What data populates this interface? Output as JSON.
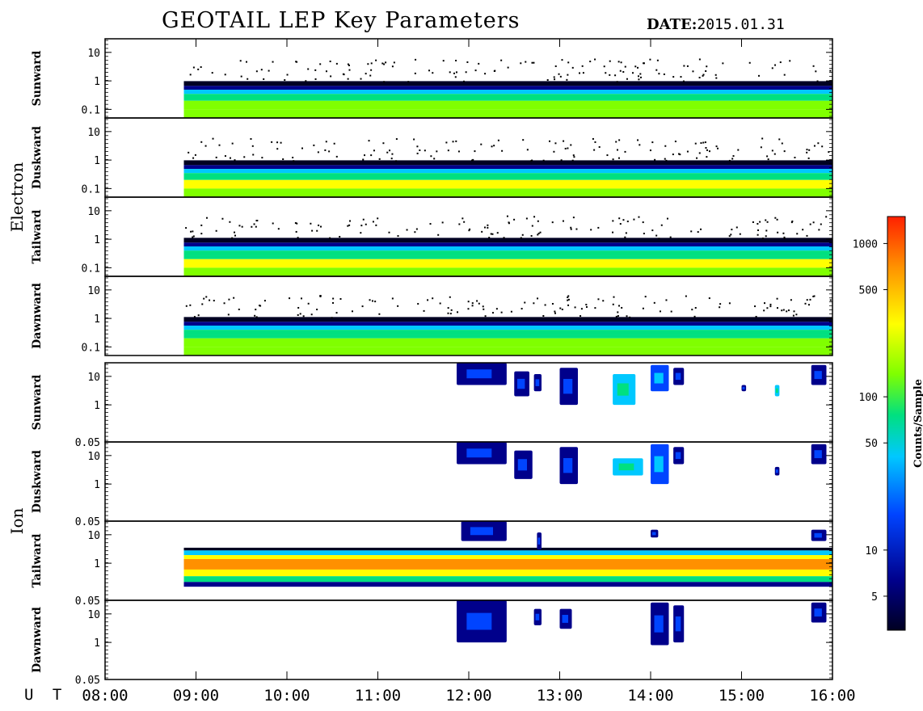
{
  "header": {
    "title": "GEOTAIL LEP Key Parameters",
    "date_label": "DATE:",
    "date_value": "2015.01.31"
  },
  "time_axis": {
    "label": "U T",
    "ticks": [
      "08:00",
      "09:00",
      "10:00",
      "11:00",
      "12:00",
      "13:00",
      "14:00",
      "15:00",
      "16:00"
    ]
  },
  "groups": [
    {
      "label": "Electron"
    },
    {
      "label": "Ion"
    }
  ],
  "colorbar": {
    "label": "Counts/Sample",
    "ticks": [
      "1000",
      "500",
      "100",
      "50",
      "10",
      "5"
    ],
    "colors": [
      "#000022",
      "#00008b",
      "#0044ff",
      "#00c8ff",
      "#00e080",
      "#80ff00",
      "#ffff00",
      "#ff9000",
      "#ff2000"
    ]
  },
  "chart_data": {
    "type": "heatmap",
    "title": "GEOTAIL LEP Key Parameters",
    "xlabel": "U T",
    "xlim": [
      "08:00",
      "16:00"
    ],
    "zlabel": "Counts/Sample",
    "zlim": [
      3,
      1500
    ],
    "zscale": "log",
    "panels": [
      {
        "group": "Electron",
        "name": "Sunward",
        "yticks": [
          "10",
          "1",
          "0.1"
        ],
        "ylim": [
          0.05,
          30
        ],
        "yscale": "log",
        "data_start": "08:52",
        "data_end": "16:00",
        "upper_edge": 0.7,
        "median_counts": 200
      },
      {
        "group": "Electron",
        "name": "Duskward",
        "yticks": [
          "10",
          "1",
          "0.1"
        ],
        "ylim": [
          0.05,
          30
        ],
        "yscale": "log",
        "data_start": "08:52",
        "data_end": "16:00",
        "upper_edge": 0.7,
        "median_counts": 250
      },
      {
        "group": "Electron",
        "name": "Tailward",
        "yticks": [
          "10",
          "1",
          "0.1"
        ],
        "ylim": [
          0.05,
          30
        ],
        "yscale": "log",
        "data_start": "08:52",
        "data_end": "16:00",
        "upper_edge": 0.8,
        "median_counts": 250
      },
      {
        "group": "Electron",
        "name": "Dawnward",
        "yticks": [
          "10",
          "1",
          "0.1"
        ],
        "ylim": [
          0.05,
          30
        ],
        "yscale": "log",
        "data_start": "08:52",
        "data_end": "16:00",
        "upper_edge": 0.8,
        "median_counts": 200
      },
      {
        "group": "Ion",
        "name": "Sunward",
        "yticks": [
          "10",
          "1",
          "0.05"
        ],
        "ylim": [
          0.05,
          30
        ],
        "yscale": "log",
        "bursts": [
          {
            "start": "11:52",
            "end": "12:25",
            "ylow": 5,
            "yhigh": 30,
            "counts": 9
          },
          {
            "start": "12:30",
            "end": "12:40",
            "ylow": 2,
            "yhigh": 15,
            "counts": 8
          },
          {
            "start": "12:43",
            "end": "12:48",
            "ylow": 3,
            "yhigh": 12,
            "counts": 8
          },
          {
            "start": "13:00",
            "end": "13:12",
            "ylow": 1,
            "yhigh": 20,
            "counts": 9
          },
          {
            "start": "13:35",
            "end": "13:50",
            "ylow": 1,
            "yhigh": 12,
            "counts": 40
          },
          {
            "start": "14:00",
            "end": "14:12",
            "ylow": 3,
            "yhigh": 25,
            "counts": 10
          },
          {
            "start": "14:15",
            "end": "14:22",
            "ylow": 5,
            "yhigh": 20,
            "counts": 8
          },
          {
            "start": "15:00",
            "end": "15:03",
            "ylow": 3,
            "yhigh": 5,
            "counts": 8
          },
          {
            "start": "15:22",
            "end": "15:25",
            "ylow": 2,
            "yhigh": 5,
            "counts": 30
          },
          {
            "start": "15:46",
            "end": "15:56",
            "ylow": 5,
            "yhigh": 25,
            "counts": 9
          }
        ]
      },
      {
        "group": "Ion",
        "name": "Duskward",
        "yticks": [
          "10",
          "1",
          "0.05"
        ],
        "ylim": [
          0.05,
          30
        ],
        "yscale": "log",
        "bursts": [
          {
            "start": "11:52",
            "end": "12:25",
            "ylow": 5,
            "yhigh": 30,
            "counts": 9
          },
          {
            "start": "12:30",
            "end": "12:42",
            "ylow": 1.5,
            "yhigh": 15,
            "counts": 8
          },
          {
            "start": "13:00",
            "end": "13:12",
            "ylow": 1,
            "yhigh": 20,
            "counts": 8
          },
          {
            "start": "13:35",
            "end": "13:55",
            "ylow": 2,
            "yhigh": 8,
            "counts": 30
          },
          {
            "start": "14:00",
            "end": "14:12",
            "ylow": 1,
            "yhigh": 25,
            "counts": 10
          },
          {
            "start": "14:15",
            "end": "14:22",
            "ylow": 5,
            "yhigh": 20,
            "counts": 8
          },
          {
            "start": "15:22",
            "end": "15:25",
            "ylow": 2,
            "yhigh": 4,
            "counts": 8
          },
          {
            "start": "15:46",
            "end": "15:56",
            "ylow": 5,
            "yhigh": 25,
            "counts": 9
          }
        ]
      },
      {
        "group": "Ion",
        "name": "Tailward",
        "yticks": [
          "10",
          "1",
          "0.05"
        ],
        "ylim": [
          0.05,
          30
        ],
        "yscale": "log",
        "data_start": "08:52",
        "data_end": "16:00",
        "band_low": 0.15,
        "band_high": 3.5,
        "median_counts": 1000,
        "bursts": [
          {
            "start": "11:55",
            "end": "12:25",
            "ylow": 6,
            "yhigh": 30,
            "counts": 8
          },
          {
            "start": "12:45",
            "end": "12:48",
            "ylow": 3,
            "yhigh": 12,
            "counts": 6
          },
          {
            "start": "14:00",
            "end": "14:05",
            "ylow": 8,
            "yhigh": 15,
            "counts": 6
          },
          {
            "start": "15:46",
            "end": "15:56",
            "ylow": 6,
            "yhigh": 15,
            "counts": 6
          }
        ]
      },
      {
        "group": "Ion",
        "name": "Dawnward",
        "yticks": [
          "10",
          "1",
          "0.05"
        ],
        "ylim": [
          0.05,
          30
        ],
        "yscale": "log",
        "bursts": [
          {
            "start": "11:52",
            "end": "12:25",
            "ylow": 1,
            "yhigh": 30,
            "counts": 9
          },
          {
            "start": "12:43",
            "end": "12:48",
            "ylow": 4,
            "yhigh": 15,
            "counts": 8
          },
          {
            "start": "13:00",
            "end": "13:08",
            "ylow": 3,
            "yhigh": 15,
            "counts": 8
          },
          {
            "start": "14:00",
            "end": "14:12",
            "ylow": 0.8,
            "yhigh": 25,
            "counts": 9
          },
          {
            "start": "14:15",
            "end": "14:22",
            "ylow": 1,
            "yhigh": 20,
            "counts": 9
          },
          {
            "start": "15:46",
            "end": "15:56",
            "ylow": 5,
            "yhigh": 25,
            "counts": 9
          }
        ]
      }
    ]
  }
}
